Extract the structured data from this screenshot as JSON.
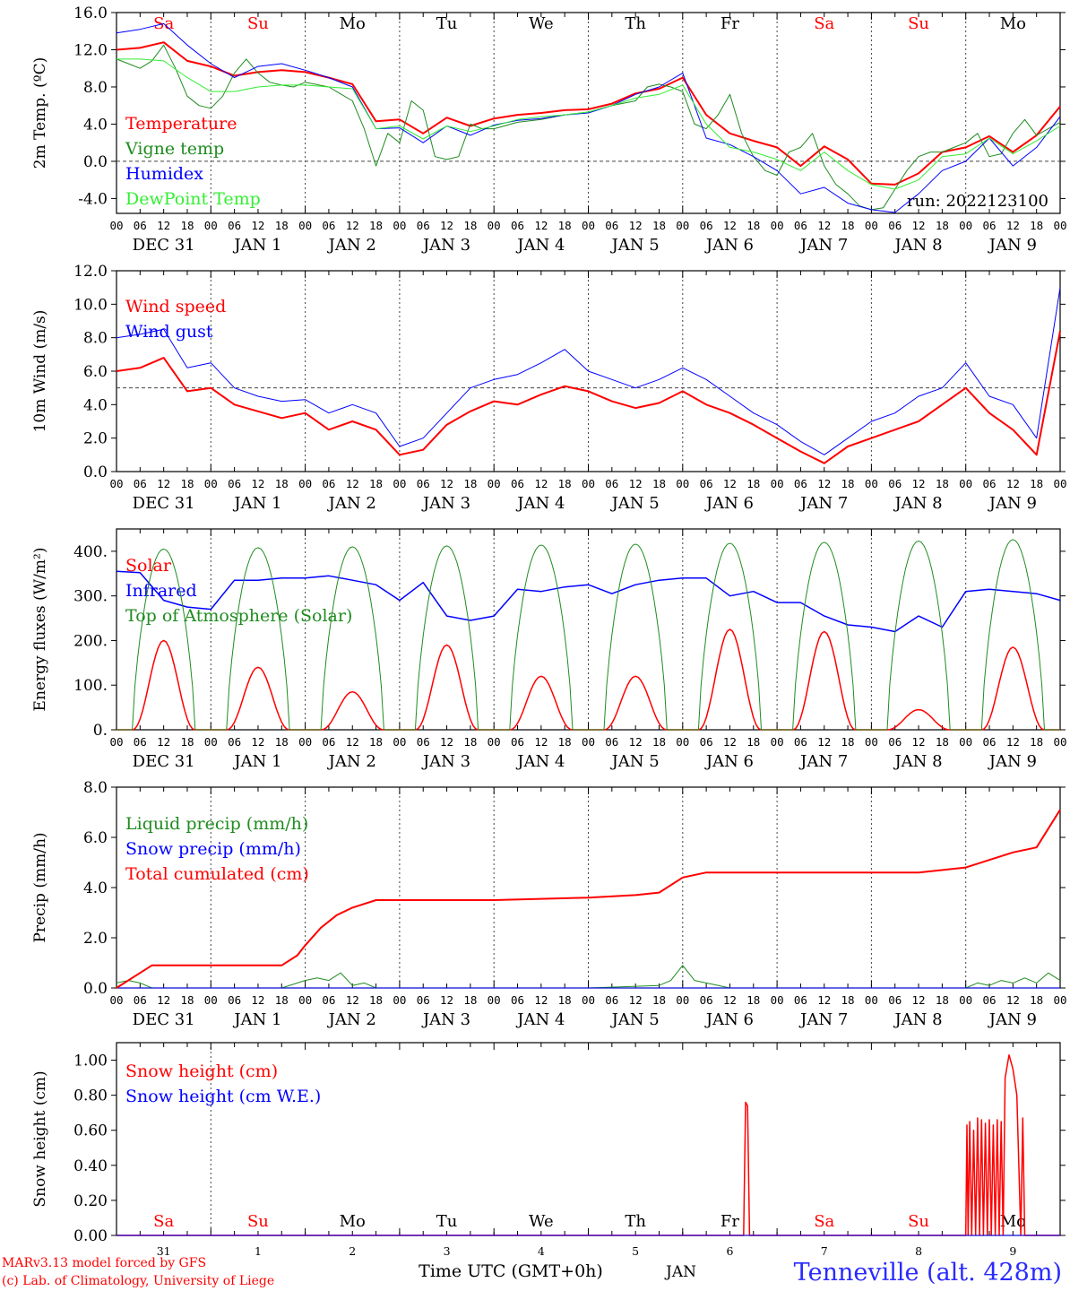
{
  "colors": {
    "red": "#ff0000",
    "green": "#1f8c1f",
    "blue": "#0000ff",
    "lightgreen": "#33ee33",
    "grid": "#555555",
    "axis": "#000000"
  },
  "days": [
    "Sa",
    "Su",
    "Mo",
    "Tu",
    "We",
    "Th",
    "Fr",
    "Sa",
    "Su",
    "Mo"
  ],
  "day_colors": [
    "#ff0000",
    "#ff0000",
    "#000000",
    "#000000",
    "#000000",
    "#000000",
    "#000000",
    "#ff0000",
    "#ff0000",
    "#000000"
  ],
  "hour_ticks": [
    "00",
    "06",
    "12",
    "18"
  ],
  "hour_end": "00",
  "date_labels": [
    "DEC 31",
    "JAN  1",
    "JAN  2",
    "JAN  3",
    "JAN  4",
    "JAN  5",
    "JAN  6",
    "JAN  7",
    "JAN  8",
    "JAN  9"
  ],
  "bottom_day_numbers": [
    "31",
    "1",
    "2",
    "3",
    "4",
    "5",
    "6",
    "7",
    "8",
    "9"
  ],
  "bottom_month": "JAN",
  "xaxis_title": "Time UTC (GMT+0h)",
  "footer": {
    "model": "MARv3.13 model forced by GFS",
    "credit": "(c) Lab. of Climatology, University of Liege",
    "station": "Tenneville (alt. 428m)"
  },
  "run_label": "run: 2022123100",
  "chart_data": [
    {
      "id": "temp",
      "type": "line",
      "ylabel": "2m Temp. (ºC)",
      "ylim": [
        -5.6,
        16.0
      ],
      "yticks": [
        16.0,
        12.0,
        8.0,
        4.0,
        0.0,
        -4.0
      ],
      "ytick_labels": [
        "16.0",
        "12.0",
        "8.0",
        "4.0",
        "0.0",
        "-4.0"
      ],
      "hline": 0.0,
      "x_unit": "hours since DEC 31 00 UTC",
      "series": [
        {
          "name": "Temperature",
          "color": "#ff0000",
          "width": 2,
          "x": [
            0,
            6,
            12,
            18,
            24,
            30,
            36,
            42,
            48,
            54,
            60,
            66,
            72,
            78,
            84,
            90,
            96,
            102,
            108,
            114,
            120,
            126,
            132,
            138,
            144,
            150,
            156,
            162,
            168,
            174,
            180,
            186,
            192,
            198,
            204,
            210,
            216,
            222,
            228,
            234,
            240
          ],
          "y": [
            12.0,
            12.2,
            12.8,
            10.8,
            10.2,
            9.2,
            9.6,
            9.8,
            9.6,
            9.0,
            8.3,
            4.3,
            4.5,
            3.0,
            4.7,
            3.8,
            4.6,
            5.0,
            5.2,
            5.5,
            5.6,
            6.2,
            7.3,
            7.8,
            9.0,
            5.0,
            3.0,
            2.2,
            1.5,
            -0.5,
            1.6,
            0.2,
            -2.4,
            -2.5,
            -1.3,
            1.0,
            1.5,
            2.7,
            1.0,
            2.8,
            5.9
          ]
        },
        {
          "name": "Vigne temp",
          "color": "#1f8c1f",
          "width": 1,
          "x": [
            0,
            3,
            6,
            9,
            12,
            15,
            18,
            21,
            24,
            27,
            30,
            33,
            36,
            39,
            42,
            45,
            48,
            54,
            60,
            63,
            66,
            69,
            72,
            75,
            78,
            81,
            84,
            87,
            90,
            93,
            96,
            102,
            108,
            114,
            120,
            126,
            132,
            135,
            138,
            141,
            144,
            147,
            150,
            153,
            156,
            159,
            162,
            165,
            168,
            171,
            174,
            177,
            180,
            183,
            186,
            189,
            192,
            195,
            198,
            201,
            204,
            207,
            210,
            213,
            216,
            219,
            222,
            225,
            228,
            231,
            234,
            237,
            240
          ],
          "y": [
            11.0,
            10.5,
            10.0,
            10.8,
            12.5,
            10.0,
            7.0,
            6.0,
            5.7,
            7.0,
            9.5,
            11.0,
            9.5,
            8.5,
            8.2,
            8.0,
            8.5,
            8.0,
            6.5,
            3.5,
            -0.5,
            3.0,
            2.0,
            6.5,
            5.5,
            0.5,
            0.2,
            0.5,
            4.0,
            3.5,
            3.5,
            4.2,
            4.5,
            5.0,
            5.3,
            6.0,
            6.5,
            8.0,
            8.3,
            8.0,
            7.5,
            4.0,
            3.5,
            5.0,
            7.2,
            3.0,
            0.5,
            -1.0,
            -1.5,
            1.0,
            1.5,
            3.0,
            -0.5,
            -2.5,
            -3.5,
            -4.8,
            -5.2,
            -5.0,
            -3.0,
            -1.0,
            0.5,
            1.0,
            1.0,
            1.5,
            2.0,
            3.0,
            0.5,
            0.8,
            3.0,
            4.5,
            2.8,
            3.5,
            4.2
          ]
        },
        {
          "name": "Humidex",
          "color": "#0000ff",
          "width": 1,
          "x": [
            0,
            6,
            12,
            18,
            24,
            30,
            36,
            42,
            48,
            54,
            60,
            66,
            72,
            78,
            84,
            90,
            96,
            102,
            108,
            114,
            120,
            126,
            132,
            138,
            144,
            150,
            156,
            162,
            168,
            174,
            180,
            186,
            192,
            198,
            204,
            210,
            216,
            222,
            228,
            234,
            240
          ],
          "y": [
            13.8,
            14.2,
            14.8,
            12.5,
            10.5,
            9.0,
            10.2,
            10.5,
            9.8,
            9.0,
            8.0,
            3.5,
            3.6,
            2.0,
            3.8,
            2.8,
            3.9,
            4.4,
            4.6,
            5.0,
            5.2,
            6.0,
            7.2,
            8.0,
            9.5,
            2.5,
            1.8,
            0.5,
            -1.0,
            -3.5,
            -2.8,
            -4.5,
            -5.2,
            -5.5,
            -3.5,
            -1.0,
            0.0,
            2.5,
            -0.5,
            1.5,
            4.8
          ]
        },
        {
          "name": "DewPoint Temp",
          "color": "#33ee33",
          "width": 1,
          "x": [
            0,
            6,
            12,
            18,
            24,
            30,
            36,
            42,
            48,
            54,
            60,
            66,
            72,
            78,
            84,
            90,
            96,
            102,
            108,
            114,
            120,
            126,
            132,
            138,
            144,
            150,
            156,
            162,
            168,
            174,
            180,
            186,
            192,
            198,
            204,
            210,
            216,
            222,
            228,
            234,
            240
          ],
          "y": [
            11.0,
            11.0,
            10.8,
            9.0,
            7.5,
            7.5,
            8.0,
            8.2,
            8.2,
            8.0,
            7.8,
            3.5,
            3.8,
            2.4,
            3.8,
            3.2,
            3.8,
            4.5,
            4.8,
            5.0,
            5.3,
            6.0,
            6.8,
            7.2,
            8.2,
            4.0,
            1.5,
            1.0,
            0.2,
            -1.0,
            1.0,
            -1.0,
            -2.5,
            -3.0,
            -2.0,
            0.5,
            0.8,
            2.5,
            0.8,
            2.2,
            3.8
          ]
        }
      ]
    },
    {
      "id": "wind",
      "type": "line",
      "ylabel": "10m Wind (m/s)",
      "ylim": [
        0.0,
        12.0
      ],
      "yticks": [
        12.0,
        10.0,
        8.0,
        6.0,
        4.0,
        2.0,
        0.0
      ],
      "ytick_labels": [
        "12.0",
        "10.0",
        "8.0",
        "6.0",
        "4.0",
        "2.0",
        "0.0"
      ],
      "hline": 5.0,
      "series": [
        {
          "name": "Wind speed",
          "color": "#ff0000",
          "width": 2,
          "x": [
            0,
            6,
            12,
            18,
            24,
            30,
            36,
            42,
            48,
            54,
            60,
            66,
            72,
            78,
            84,
            90,
            96,
            102,
            108,
            114,
            120,
            126,
            132,
            138,
            144,
            150,
            156,
            162,
            168,
            174,
            180,
            186,
            192,
            198,
            204,
            210,
            216,
            222,
            228,
            234,
            240
          ],
          "y": [
            6.0,
            6.2,
            6.8,
            4.8,
            5.0,
            4.0,
            3.6,
            3.2,
            3.5,
            2.5,
            3.0,
            2.5,
            1.0,
            1.3,
            2.8,
            3.6,
            4.2,
            4.0,
            4.6,
            5.1,
            4.8,
            4.2,
            3.8,
            4.1,
            4.8,
            4.0,
            3.5,
            2.8,
            2.0,
            1.2,
            0.5,
            1.5,
            2.0,
            2.5,
            3.0,
            4.0,
            5.0,
            3.5,
            2.5,
            1.0,
            8.4
          ]
        },
        {
          "name": "Wind gust",
          "color": "#0000ff",
          "width": 1,
          "x": [
            0,
            6,
            12,
            18,
            24,
            30,
            36,
            42,
            48,
            54,
            60,
            66,
            72,
            78,
            84,
            90,
            96,
            102,
            108,
            114,
            120,
            126,
            132,
            138,
            144,
            150,
            156,
            162,
            168,
            174,
            180,
            186,
            192,
            198,
            204,
            210,
            216,
            222,
            228,
            234,
            240
          ],
          "y": [
            8.0,
            8.2,
            8.5,
            6.2,
            6.5,
            5.0,
            4.5,
            4.2,
            4.3,
            3.5,
            4.0,
            3.5,
            1.5,
            2.0,
            3.5,
            5.0,
            5.5,
            5.8,
            6.5,
            7.3,
            6.0,
            5.5,
            5.0,
            5.5,
            6.2,
            5.5,
            4.5,
            3.5,
            2.8,
            1.8,
            1.0,
            2.0,
            3.0,
            3.5,
            4.5,
            5.0,
            6.5,
            4.5,
            4.0,
            2.0,
            11.0
          ]
        }
      ]
    },
    {
      "id": "energy",
      "type": "line",
      "ylabel": "Energy fluxes (W/m²)",
      "ylim": [
        0,
        450
      ],
      "yticks": [
        400,
        300,
        200,
        100,
        0
      ],
      "ytick_labels": [
        "400.",
        "300.",
        "200.",
        "100.",
        "0."
      ],
      "series": [
        {
          "name": "Solar",
          "color": "#ff0000",
          "width": 1.5,
          "kind": "daily_bell",
          "peaks": [
            200,
            140,
            85,
            190,
            120,
            120,
            225,
            220,
            45,
            185
          ]
        },
        {
          "name": "Infrared",
          "color": "#0000ff",
          "width": 1.5,
          "x": [
            0,
            6,
            12,
            18,
            24,
            30,
            36,
            42,
            48,
            54,
            60,
            66,
            72,
            78,
            84,
            90,
            96,
            102,
            108,
            114,
            120,
            126,
            132,
            138,
            144,
            150,
            156,
            162,
            168,
            174,
            180,
            186,
            192,
            198,
            204,
            210,
            216,
            222,
            228,
            234,
            240
          ],
          "y": [
            355,
            352,
            290,
            275,
            270,
            335,
            335,
            340,
            340,
            345,
            335,
            325,
            290,
            330,
            255,
            245,
            255,
            315,
            310,
            320,
            325,
            305,
            325,
            335,
            340,
            340,
            300,
            310,
            285,
            285,
            255,
            235,
            230,
            220,
            255,
            230,
            310,
            315,
            310,
            305,
            290
          ]
        },
        {
          "name": "Top of Atmosphere (Solar)",
          "color": "#1f8c1f",
          "width": 1,
          "kind": "daily_bell",
          "peaks": [
            405,
            408,
            410,
            412,
            414,
            416,
            418,
            420,
            423,
            426
          ]
        }
      ]
    },
    {
      "id": "precip",
      "type": "line",
      "ylabel": "Precip (mm/h)",
      "ylim": [
        0.0,
        8.0
      ],
      "yticks": [
        8.0,
        6.0,
        4.0,
        2.0,
        0.0
      ],
      "ytick_labels": [
        "8.0",
        "6.0",
        "4.0",
        "2.0",
        "0.0"
      ],
      "series": [
        {
          "name": "Liquid precip (mm/h)",
          "color": "#1f8c1f",
          "width": 1,
          "x": [
            0,
            3,
            6,
            9,
            12,
            24,
            36,
            42,
            48,
            51,
            54,
            57,
            60,
            63,
            66,
            72,
            96,
            120,
            138,
            141,
            144,
            147,
            150,
            156,
            168,
            192,
            216,
            219,
            222,
            225,
            228,
            231,
            234,
            237,
            240
          ],
          "y": [
            0.2,
            0.3,
            0.2,
            0.0,
            0.0,
            0.0,
            0.0,
            0.0,
            0.3,
            0.4,
            0.3,
            0.6,
            0.1,
            0.2,
            0.0,
            0.0,
            0.0,
            0.0,
            0.1,
            0.3,
            0.9,
            0.3,
            0.2,
            0.0,
            0.0,
            0.0,
            0.0,
            0.2,
            0.1,
            0.3,
            0.2,
            0.4,
            0.2,
            0.6,
            0.3
          ]
        },
        {
          "name": "Snow precip (mm/h)",
          "color": "#0000ff",
          "width": 1,
          "x": [
            0,
            240
          ],
          "y": [
            0.0,
            0.0
          ]
        },
        {
          "name": "Total cumulated (cm)",
          "color": "#ff0000",
          "width": 2,
          "x": [
            0,
            6,
            9,
            12,
            24,
            36,
            42,
            46,
            48,
            52,
            56,
            60,
            66,
            72,
            96,
            120,
            132,
            138,
            144,
            150,
            162,
            180,
            204,
            216,
            222,
            228,
            234,
            240
          ],
          "y": [
            0.0,
            0.6,
            0.9,
            0.9,
            0.9,
            0.9,
            0.9,
            1.3,
            1.7,
            2.4,
            2.9,
            3.2,
            3.5,
            3.5,
            3.5,
            3.6,
            3.7,
            3.8,
            4.4,
            4.6,
            4.6,
            4.6,
            4.6,
            4.8,
            5.1,
            5.4,
            5.6,
            7.1
          ]
        }
      ]
    },
    {
      "id": "snow",
      "type": "line",
      "ylabel": "Snow height (cm)",
      "ylim": [
        0.0,
        1.1
      ],
      "yticks": [
        1.0,
        0.8,
        0.6,
        0.4,
        0.2,
        0.0
      ],
      "ytick_labels": [
        "1.00",
        "0.80",
        "0.60",
        "0.40",
        "0.20",
        "0.00"
      ],
      "series": [
        {
          "name": "Snow height (cm)",
          "color": "#ff0000",
          "width": 1.5,
          "x": [
            0,
            159.5,
            160,
            160.5,
            161,
            216,
            216.3,
            216.6,
            217,
            217.5,
            218,
            218.5,
            219,
            219.5,
            220,
            220.5,
            221,
            221.5,
            222,
            222.5,
            223,
            223.5,
            224,
            224.5,
            225,
            225.5,
            226,
            227,
            228,
            229,
            230,
            230.5,
            231,
            231.5,
            240
          ],
          "y": [
            0,
            0,
            0.76,
            0.74,
            0,
            0,
            0.63,
            0,
            0.65,
            0,
            0.6,
            0,
            0.67,
            0,
            0.66,
            0,
            0.64,
            0,
            0.66,
            0,
            0.63,
            0,
            0.66,
            0,
            0.65,
            0,
            0.9,
            1.03,
            0.95,
            0.8,
            0,
            0.67,
            0,
            0,
            0
          ]
        },
        {
          "name": "Snow height (cm W.E.)",
          "color": "#0000ff",
          "width": 1,
          "x": [
            0,
            240
          ],
          "y": [
            0,
            0
          ]
        }
      ]
    }
  ]
}
